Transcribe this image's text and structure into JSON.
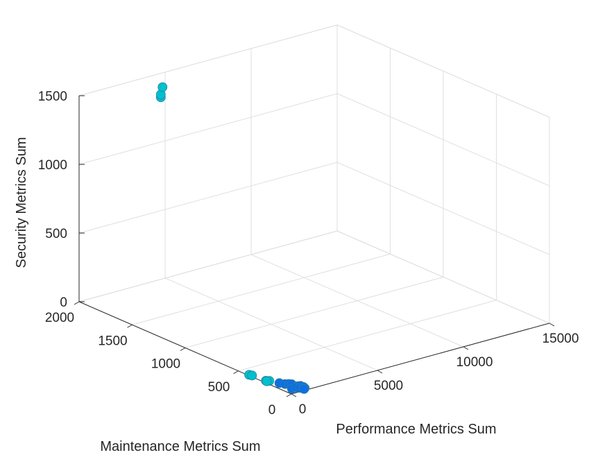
{
  "chart_data": {
    "type": "scatter",
    "title": "",
    "xlabel": "Performance Metrics Sum",
    "ylabel": "Maintenance Metrics Sum",
    "zlabel": "Security Metrics Sum",
    "xlim": [
      0,
      15000
    ],
    "ylim": [
      0,
      2000
    ],
    "zlim": [
      0,
      1500
    ],
    "xticks": [
      {
        "v": 0,
        "label": "0"
      },
      {
        "v": 5000,
        "label": "5000"
      },
      {
        "v": 10000,
        "label": "10000"
      },
      {
        "v": 15000,
        "label": "15000"
      }
    ],
    "yticks": [
      {
        "v": 0,
        "label": "0"
      },
      {
        "v": 500,
        "label": "500"
      },
      {
        "v": 1000,
        "label": "1000"
      },
      {
        "v": 1500,
        "label": "1500"
      },
      {
        "v": 2000,
        "label": "2000"
      }
    ],
    "zticks": [
      {
        "v": 0,
        "label": "0"
      },
      {
        "v": 500,
        "label": "500"
      },
      {
        "v": 1000,
        "label": "1000"
      },
      {
        "v": 1500,
        "label": "1500"
      }
    ],
    "grid": true,
    "marker_color": "#00C0CC",
    "marker_edge_color": "#2A7FA8",
    "marker_colors_low": "#0F6FE0",
    "points": [
      {
        "x": 3000,
        "y": 1700,
        "z": 1560
      },
      {
        "x": 2900,
        "y": 1700,
        "z": 1510
      },
      {
        "x": 2900,
        "y": 1700,
        "z": 1490
      },
      {
        "x": 10,
        "y": 400,
        "z": 5
      },
      {
        "x": 60,
        "y": 380,
        "z": 5
      },
      {
        "x": 50,
        "y": 240,
        "z": 10
      },
      {
        "x": 120,
        "y": 260,
        "z": 5
      },
      {
        "x": 200,
        "y": 240,
        "z": 8
      },
      {
        "x": 350,
        "y": 170,
        "z": 10
      },
      {
        "x": 500,
        "y": 140,
        "z": 8
      },
      {
        "x": 600,
        "y": 120,
        "z": 12
      },
      {
        "x": 700,
        "y": 110,
        "z": 10
      },
      {
        "x": 650,
        "y": 60,
        "z": 5
      },
      {
        "x": 800,
        "y": 70,
        "z": 6
      },
      {
        "x": 900,
        "y": 60,
        "z": 8
      },
      {
        "x": 750,
        "y": 40,
        "z": 5
      },
      {
        "x": 950,
        "y": 40,
        "z": 5
      },
      {
        "x": 400,
        "y": 60,
        "z": 4
      },
      {
        "x": 900,
        "y": 20,
        "z": 5
      },
      {
        "x": 800,
        "y": 10,
        "z": 5
      }
    ]
  }
}
